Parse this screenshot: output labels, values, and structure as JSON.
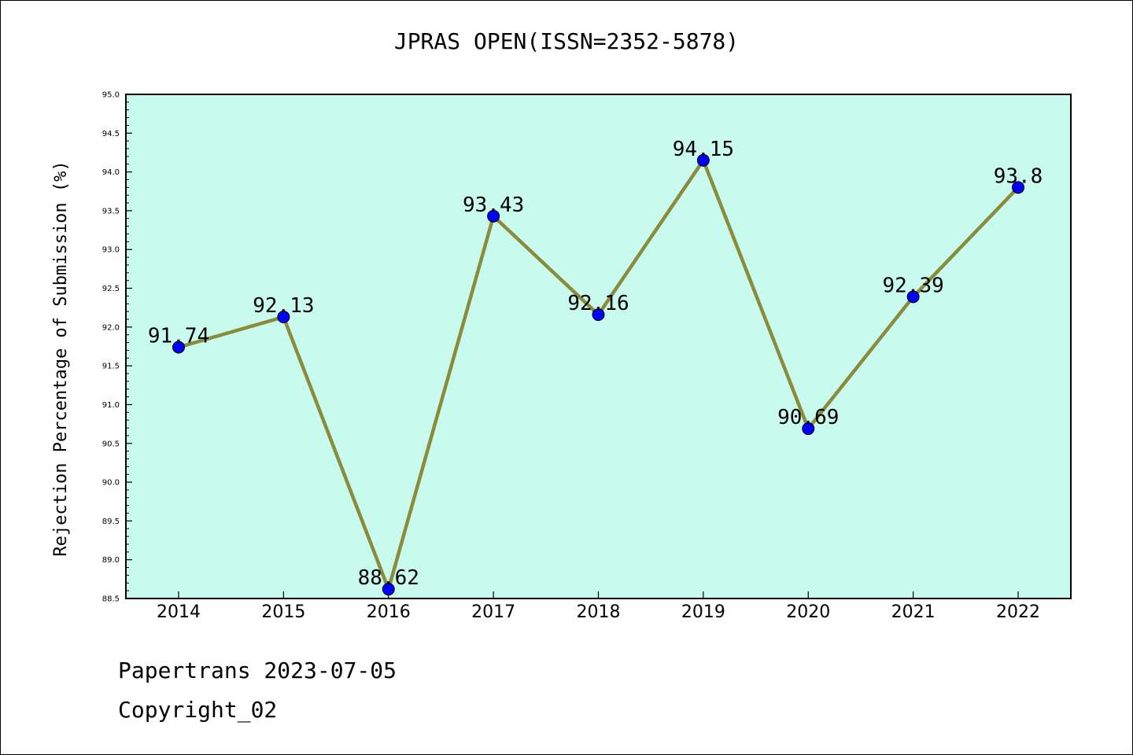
{
  "chart_data": {
    "type": "line",
    "title": "JPRAS OPEN(ISSN=2352-5878)",
    "xlabel": "",
    "ylabel": "Rejection Percentage of Submission (%)",
    "categories": [
      "2014",
      "2015",
      "2016",
      "2017",
      "2018",
      "2019",
      "2020",
      "2021",
      "2022"
    ],
    "series": [
      {
        "values": [
          91.74,
          92.13,
          88.62,
          93.43,
          92.16,
          94.15,
          90.69,
          92.39,
          93.8
        ],
        "labels": [
          "91.74",
          "92.13",
          "88.62",
          "93.43",
          "92.16",
          "94.15",
          "90.69",
          "92.39",
          "93.8"
        ]
      }
    ],
    "ylim": [
      88.5,
      95.0
    ],
    "yticks": [
      "88.5",
      "89.0",
      "89.5",
      "90.0",
      "90.5",
      "91.0",
      "91.5",
      "92.0",
      "92.5",
      "93.0",
      "93.5",
      "94.0",
      "94.5",
      "95.0"
    ],
    "grid": false,
    "colors": {
      "plot_background": "#c8fbee",
      "line": "#8b8b3c",
      "marker": "#0000ff"
    }
  },
  "footer": {
    "line1": "Papertrans 2023-07-05",
    "line2": "Copyright_02"
  }
}
